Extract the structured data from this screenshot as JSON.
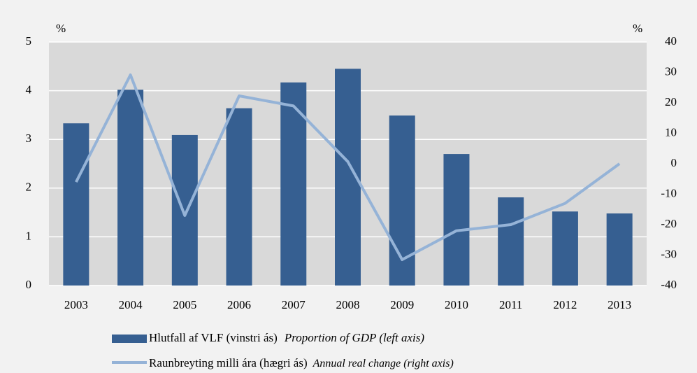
{
  "chart_data": {
    "type": "bar_line",
    "ylabel": "%",
    "y2label": "%",
    "categories": [
      "2003",
      "2004",
      "2005",
      "2006",
      "2007",
      "2008",
      "2009",
      "2010",
      "2011",
      "2012",
      "2013"
    ],
    "series": [
      {
        "name": "Hlutfall af VLF (vinstri ás)",
        "name_en": "Proportion of GDP (left axis)",
        "type": "bar",
        "color": "#365f91",
        "values": [
          3.33,
          4.02,
          3.09,
          3.64,
          4.17,
          4.45,
          3.49,
          2.7,
          1.81,
          1.52,
          1.48
        ]
      },
      {
        "name": "Raunbreyting milli ára (hægri ás)",
        "name_en": "Annual real change (right axis)",
        "type": "line",
        "axis": "y2",
        "color": "#95b3d7",
        "values": [
          -6,
          29.2,
          -17,
          22.3,
          19,
          0.7,
          -31.5,
          -22,
          -20,
          -13,
          0
        ]
      }
    ],
    "ylim": [
      0,
      5
    ],
    "yticks": [
      0,
      1,
      2,
      3,
      4,
      5
    ],
    "y2lim": [
      -40,
      40
    ],
    "y2ticks": [
      -40,
      -30,
      -20,
      -10,
      0,
      10,
      20,
      30,
      40
    ],
    "grid": true
  }
}
